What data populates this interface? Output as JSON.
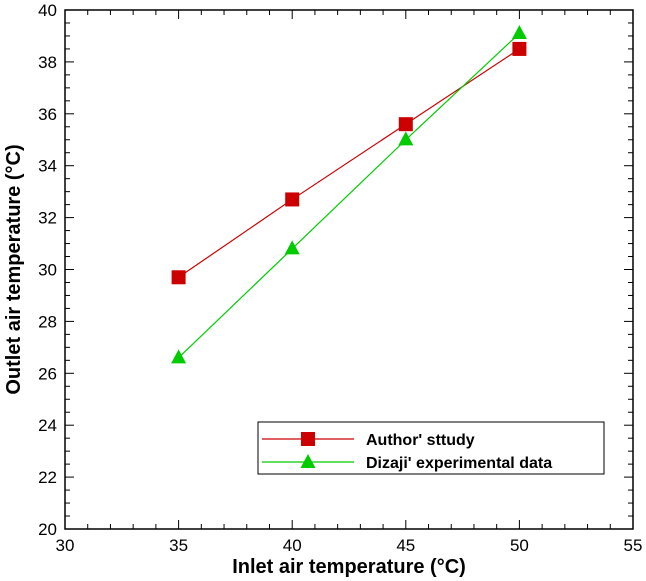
{
  "chart_data": {
    "type": "line",
    "xlabel": "Inlet air temperature (°C)",
    "ylabel": "Outlet air temperature (°C)",
    "xlim": [
      30,
      55
    ],
    "ylim": [
      20,
      40
    ],
    "xticks": [
      30,
      35,
      40,
      45,
      50,
      55
    ],
    "yticks": [
      20,
      22,
      24,
      26,
      28,
      30,
      32,
      34,
      36,
      38,
      40
    ],
    "grid": false,
    "legend_position": "bottom-right",
    "series": [
      {
        "name": "Author' sttudy",
        "marker": "square",
        "color": "#cc0000",
        "x": [
          35,
          40,
          45,
          50
        ],
        "y": [
          29.7,
          32.7,
          35.6,
          38.5
        ]
      },
      {
        "name": "Dizaji' experimental data",
        "marker": "triangle",
        "color": "#00cc00",
        "x": [
          35,
          40,
          45,
          50
        ],
        "y": [
          26.6,
          30.8,
          35.0,
          39.1
        ]
      }
    ]
  }
}
